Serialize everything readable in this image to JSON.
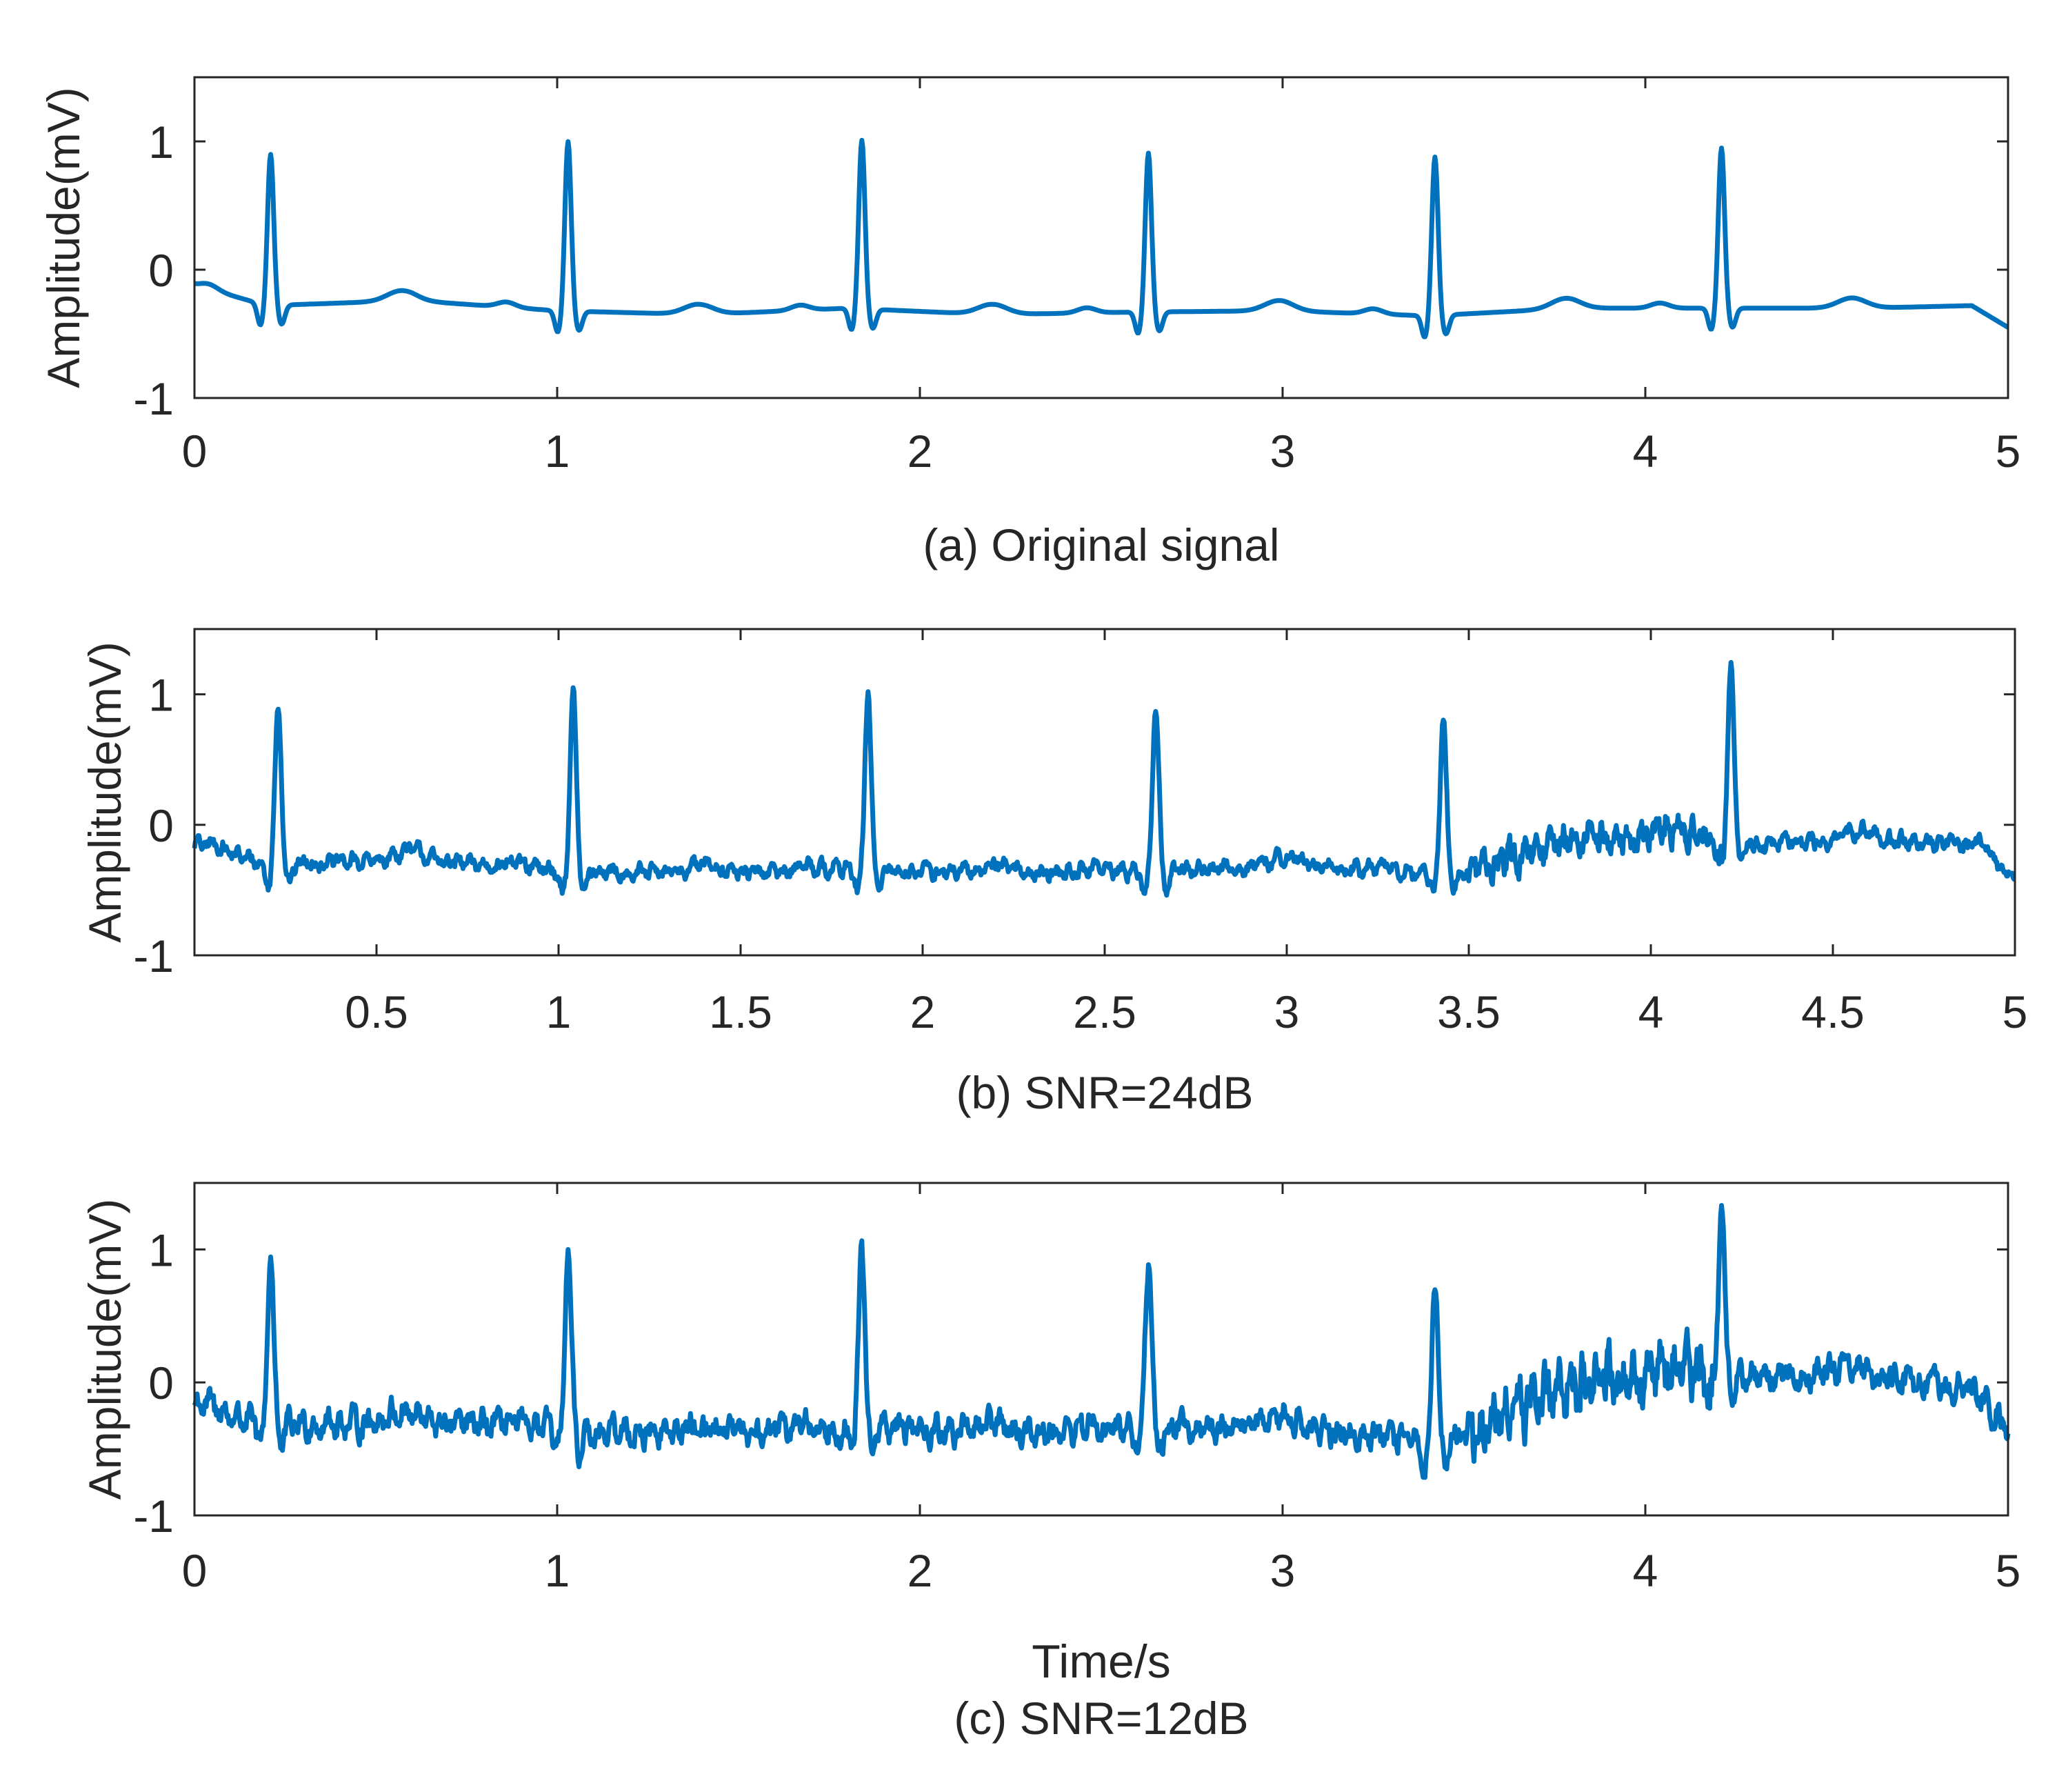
{
  "chart_data": [
    {
      "type": "line",
      "caption": "(a) Original signal",
      "xlabel": "",
      "ylabel": "Amplitude(mV)",
      "xlim": [
        0,
        5
      ],
      "ylim": [
        -1,
        1.5
      ],
      "xticks": [
        0,
        1,
        2,
        3,
        4,
        5
      ],
      "xtick_labels": [
        "0",
        "1",
        "2",
        "3",
        "4",
        "5"
      ],
      "yticks": [
        -1,
        0,
        1
      ],
      "ytick_labels": [
        "-1",
        "0",
        "1"
      ],
      "grid": false,
      "series_color": "#0072BD",
      "beats": [
        {
          "t": 0.21,
          "peak": 0.85
        },
        {
          "t": 1.03,
          "peak": 0.95
        },
        {
          "t": 1.84,
          "peak": 0.96
        },
        {
          "t": 2.63,
          "peak": 0.86
        },
        {
          "t": 3.42,
          "peak": 0.83
        },
        {
          "t": 4.21,
          "peak": 0.9
        }
      ],
      "baseline": [
        {
          "t": 0.0,
          "v": -0.12
        },
        {
          "t": 0.2,
          "v": -0.28
        },
        {
          "t": 0.6,
          "v": -0.24
        },
        {
          "t": 1.0,
          "v": -0.32
        },
        {
          "t": 1.4,
          "v": -0.35
        },
        {
          "t": 1.8,
          "v": -0.3
        },
        {
          "t": 2.2,
          "v": -0.35
        },
        {
          "t": 2.6,
          "v": -0.33
        },
        {
          "t": 3.0,
          "v": -0.32
        },
        {
          "t": 3.4,
          "v": -0.36
        },
        {
          "t": 3.8,
          "v": -0.3
        },
        {
          "t": 4.2,
          "v": -0.3
        },
        {
          "t": 4.6,
          "v": -0.3
        },
        {
          "t": 4.9,
          "v": -0.28
        },
        {
          "t": 5.0,
          "v": -0.45
        }
      ],
      "noise": 0.0,
      "extra_noise_region": null
    },
    {
      "type": "line",
      "caption": "(b) SNR=24dB",
      "xlabel": "",
      "ylabel": "Amplitude(mV)",
      "xlim": [
        0,
        5
      ],
      "ylim": [
        -1,
        1.5
      ],
      "xticks": [
        0.5,
        1,
        1.5,
        2,
        2.5,
        3,
        3.5,
        4,
        4.5,
        5
      ],
      "xtick_labels": [
        "0.5",
        "1",
        "1.5",
        "2",
        "2.5",
        "3",
        "3.5",
        "4",
        "4.5",
        "5"
      ],
      "yticks": [
        -1,
        0,
        1
      ],
      "ytick_labels": [
        "-1",
        "0",
        "1"
      ],
      "grid": false,
      "series_color": "#0072BD",
      "beats": [
        {
          "t": 0.23,
          "peak": 0.88
        },
        {
          "t": 1.04,
          "peak": 0.95
        },
        {
          "t": 1.85,
          "peak": 0.95
        },
        {
          "t": 2.64,
          "peak": 0.88
        },
        {
          "t": 3.43,
          "peak": 0.73
        },
        {
          "t": 4.22,
          "peak": 1.18
        }
      ],
      "baseline": [
        {
          "t": 0.0,
          "v": -0.15
        },
        {
          "t": 0.2,
          "v": -0.3
        },
        {
          "t": 0.6,
          "v": -0.27
        },
        {
          "t": 1.0,
          "v": -0.35
        },
        {
          "t": 1.4,
          "v": -0.38
        },
        {
          "t": 1.8,
          "v": -0.33
        },
        {
          "t": 2.2,
          "v": -0.38
        },
        {
          "t": 2.6,
          "v": -0.35
        },
        {
          "t": 3.0,
          "v": -0.32
        },
        {
          "t": 3.3,
          "v": -0.36
        },
        {
          "t": 3.5,
          "v": -0.35
        },
        {
          "t": 3.8,
          "v": -0.15
        },
        {
          "t": 4.05,
          "v": -0.05
        },
        {
          "t": 4.3,
          "v": -0.15
        },
        {
          "t": 4.6,
          "v": -0.12
        },
        {
          "t": 4.9,
          "v": -0.15
        },
        {
          "t": 5.0,
          "v": -0.42
        }
      ],
      "noise": 0.04,
      "extra_noise_region": [
        3.5,
        4.2
      ]
    },
    {
      "type": "line",
      "caption": "(c) SNR=12dB",
      "xlabel": "Time/s",
      "ylabel": "Amplitude(mV)",
      "xlim": [
        0,
        5
      ],
      "ylim": [
        -1,
        1.5
      ],
      "xticks": [
        0,
        1,
        2,
        3,
        4,
        5
      ],
      "xtick_labels": [
        "0",
        "1",
        "2",
        "3",
        "4",
        "5"
      ],
      "yticks": [
        -1,
        0,
        1
      ],
      "ytick_labels": [
        "-1",
        "0",
        "1"
      ],
      "grid": false,
      "series_color": "#0072BD",
      "beats": [
        {
          "t": 0.21,
          "peak": 0.92
        },
        {
          "t": 1.03,
          "peak": 0.95
        },
        {
          "t": 1.84,
          "peak": 0.93
        },
        {
          "t": 2.63,
          "peak": 0.88
        },
        {
          "t": 3.42,
          "peak": 0.67
        },
        {
          "t": 4.21,
          "peak": 1.42
        }
      ],
      "baseline": [
        {
          "t": 0.0,
          "v": -0.18
        },
        {
          "t": 0.2,
          "v": -0.32
        },
        {
          "t": 0.6,
          "v": -0.3
        },
        {
          "t": 1.0,
          "v": -0.35
        },
        {
          "t": 1.4,
          "v": -0.4
        },
        {
          "t": 1.8,
          "v": -0.33
        },
        {
          "t": 2.2,
          "v": -0.38
        },
        {
          "t": 2.6,
          "v": -0.35
        },
        {
          "t": 3.0,
          "v": -0.32
        },
        {
          "t": 3.35,
          "v": -0.45
        },
        {
          "t": 3.5,
          "v": -0.4
        },
        {
          "t": 3.7,
          "v": -0.1
        },
        {
          "t": 4.0,
          "v": 0.08
        },
        {
          "t": 4.3,
          "v": 0.05
        },
        {
          "t": 4.6,
          "v": 0.05
        },
        {
          "t": 4.9,
          "v": -0.05
        },
        {
          "t": 5.0,
          "v": -0.35
        }
      ],
      "noise": 0.07,
      "extra_noise_region": [
        3.5,
        4.2
      ]
    }
  ]
}
